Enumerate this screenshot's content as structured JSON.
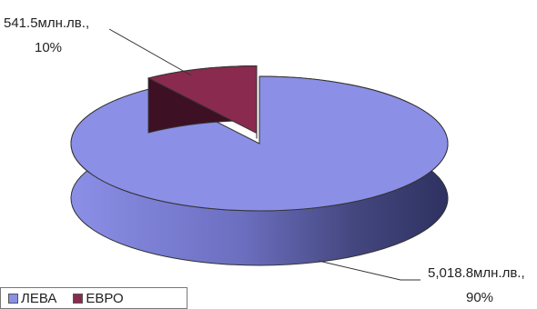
{
  "chart_data": {
    "type": "pie",
    "style": "3d-exploded",
    "slices": [
      {
        "name": "ЛЕВА",
        "value": 5018.8,
        "percent": 90,
        "label_line1": "5,018.8млн.лв.,",
        "label_line2": "90%",
        "color": "#8b8fe6",
        "side_color_dark": "#2e3160"
      },
      {
        "name": "ЕВРО",
        "value": 541.5,
        "percent": 10,
        "label_line1": "541.5млн.лв.,",
        "label_line2": "10%",
        "color": "#8a2a4e",
        "side_color_dark": "#3e1024"
      }
    ],
    "legend": {
      "position": "bottom-left",
      "items": [
        "ЛЕВА",
        "ЕВРО"
      ]
    }
  }
}
